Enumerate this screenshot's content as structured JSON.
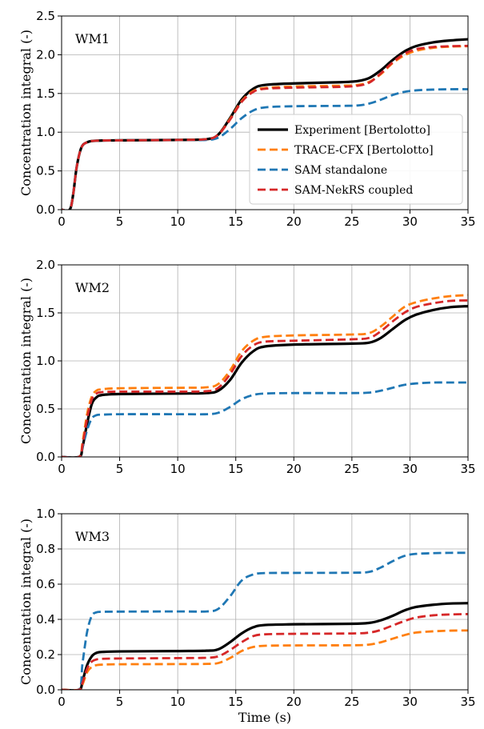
{
  "chart_data": {
    "type": "line",
    "x_label": "Time (s)",
    "y_label": "Concentration integral (-)",
    "xlim": [
      0,
      35
    ],
    "x_ticks": [
      0,
      5,
      10,
      15,
      20,
      25,
      30,
      35
    ],
    "grid": true,
    "legend_placement": "lower-right (panel WM1)",
    "series_styles": [
      {
        "name": "Experiment [Bertolotto]",
        "color": "#000000",
        "dash": "solid",
        "width": 3.2
      },
      {
        "name": "TRACE-CFX [Bertolotto]",
        "color": "#ff7f0e",
        "dash": "dashed",
        "width": 2.8
      },
      {
        "name": "SAM standalone",
        "color": "#1f77b4",
        "dash": "dashed",
        "width": 2.8
      },
      {
        "name": "SAM-NekRS coupled",
        "color": "#d62728",
        "dash": "dashed",
        "width": 2.8
      }
    ],
    "panels": [
      {
        "tag": "WM1",
        "ylim": [
          0,
          2.5
        ],
        "y_ticks": [
          "0.0",
          "0.5",
          "1.0",
          "1.5",
          "2.0",
          "2.5"
        ],
        "show_legend": true,
        "series": [
          {
            "name": "Experiment [Bertolotto]",
            "x": [
              0,
              0.7,
              1,
              1.3,
              1.7,
              2.2,
              3,
              5,
              10,
              12.5,
              13.5,
              14.5,
              15.5,
              16.5,
              17.5,
              20,
              24,
              25.5,
              26.5,
              27.5,
              28.5,
              29.5,
              30.5,
              32,
              33.5,
              35
            ],
            "y": [
              0,
              0,
              0.2,
              0.55,
              0.8,
              0.87,
              0.89,
              0.895,
              0.9,
              0.91,
              0.97,
              1.18,
              1.42,
              1.56,
              1.61,
              1.63,
              1.645,
              1.66,
              1.7,
              1.8,
              1.93,
              2.04,
              2.11,
              2.16,
              2.185,
              2.2
            ]
          },
          {
            "name": "TRACE-CFX [Bertolotto]",
            "x": [
              0,
              0.7,
              1,
              1.3,
              1.7,
              2.2,
              3,
              5,
              10,
              12.5,
              13.5,
              14.5,
              15.5,
              16.5,
              17.5,
              20,
              24,
              25.5,
              26.5,
              27.5,
              28.5,
              29.5,
              30.5,
              32,
              33.5,
              35
            ],
            "y": [
              0,
              0,
              0.2,
              0.55,
              0.8,
              0.87,
              0.89,
              0.895,
              0.9,
              0.91,
              0.97,
              1.17,
              1.4,
              1.53,
              1.57,
              1.59,
              1.6,
              1.61,
              1.65,
              1.75,
              1.89,
              1.99,
              2.05,
              2.09,
              2.105,
              2.11
            ]
          },
          {
            "name": "SAM standalone",
            "x": [
              0,
              0.7,
              1,
              1.3,
              1.7,
              2.2,
              3,
              5,
              10,
              12.5,
              13.5,
              14.5,
              15.5,
              16.5,
              17.5,
              20,
              24,
              25.5,
              26.5,
              27.5,
              28.5,
              29.5,
              30.5,
              32,
              33.5,
              35
            ],
            "y": [
              0,
              0,
              0.2,
              0.55,
              0.8,
              0.87,
              0.89,
              0.895,
              0.9,
              0.9,
              0.93,
              1.04,
              1.18,
              1.28,
              1.32,
              1.335,
              1.34,
              1.345,
              1.37,
              1.42,
              1.48,
              1.52,
              1.54,
              1.55,
              1.555,
              1.555
            ]
          },
          {
            "name": "SAM-NekRS coupled",
            "x": [
              0,
              0.7,
              1,
              1.3,
              1.7,
              2.2,
              3,
              5,
              10,
              12.5,
              13.5,
              14.5,
              15.5,
              16.5,
              17.5,
              20,
              24,
              25.5,
              26.5,
              27.5,
              28.5,
              29.5,
              30.5,
              32,
              33.5,
              35
            ],
            "y": [
              0,
              0,
              0.2,
              0.55,
              0.8,
              0.87,
              0.89,
              0.895,
              0.9,
              0.91,
              0.97,
              1.16,
              1.39,
              1.52,
              1.56,
              1.575,
              1.585,
              1.6,
              1.64,
              1.76,
              1.9,
              2.01,
              2.07,
              2.1,
              2.11,
              2.115
            ]
          }
        ]
      },
      {
        "tag": "WM2",
        "ylim": [
          0,
          2.0
        ],
        "y_ticks": [
          "0.0",
          "0.5",
          "1.0",
          "1.5",
          "2.0"
        ],
        "show_legend": false,
        "series": [
          {
            "name": "Experiment [Bertolotto]",
            "x": [
              0,
              1.5,
              1.8,
              2.2,
              2.6,
              3,
              3.5,
              5,
              10,
              12.5,
              13.5,
              14.5,
              15.5,
              16.5,
              17.5,
              20,
              25,
              26.5,
              27.5,
              28.5,
              29.5,
              30.5,
              32,
              33.5,
              35
            ],
            "y": [
              0,
              0,
              0.1,
              0.35,
              0.55,
              0.62,
              0.645,
              0.655,
              0.66,
              0.665,
              0.69,
              0.8,
              0.98,
              1.1,
              1.15,
              1.17,
              1.18,
              1.19,
              1.24,
              1.33,
              1.42,
              1.48,
              1.53,
              1.56,
              1.57
            ]
          },
          {
            "name": "TRACE-CFX [Bertolotto]",
            "x": [
              0,
              1.5,
              1.8,
              2.2,
              2.6,
              3,
              3.5,
              5,
              10,
              12.5,
              13.5,
              14.5,
              15.5,
              16.5,
              17.5,
              20,
              25,
              26.5,
              27.5,
              28.5,
              29.5,
              30.5,
              32,
              33.5,
              35
            ],
            "y": [
              0,
              0,
              0.15,
              0.45,
              0.63,
              0.69,
              0.705,
              0.715,
              0.72,
              0.725,
              0.76,
              0.9,
              1.1,
              1.21,
              1.25,
              1.265,
              1.275,
              1.29,
              1.36,
              1.46,
              1.56,
              1.61,
              1.65,
              1.675,
              1.685
            ]
          },
          {
            "name": "SAM standalone",
            "x": [
              0,
              1.5,
              1.8,
              2.2,
              2.6,
              3,
              3.5,
              5,
              10,
              12.5,
              13.5,
              14.5,
              15.5,
              16.5,
              17.5,
              20,
              25,
              26.5,
              27.5,
              28.5,
              29.5,
              30.5,
              32,
              33.5,
              35
            ],
            "y": [
              0,
              0,
              0.1,
              0.28,
              0.4,
              0.435,
              0.44,
              0.445,
              0.445,
              0.445,
              0.46,
              0.52,
              0.6,
              0.645,
              0.66,
              0.665,
              0.665,
              0.67,
              0.69,
              0.72,
              0.75,
              0.765,
              0.775,
              0.775,
              0.775
            ]
          },
          {
            "name": "SAM-NekRS coupled",
            "x": [
              0,
              1.5,
              1.8,
              2.2,
              2.6,
              3,
              3.5,
              5,
              10,
              12.5,
              13.5,
              14.5,
              15.5,
              16.5,
              17.5,
              20,
              25,
              26.5,
              27.5,
              28.5,
              29.5,
              30.5,
              32,
              33.5,
              35
            ],
            "y": [
              0,
              0,
              0.12,
              0.4,
              0.6,
              0.66,
              0.675,
              0.68,
              0.68,
              0.685,
              0.72,
              0.86,
              1.05,
              1.16,
              1.2,
              1.21,
              1.225,
              1.24,
              1.31,
              1.41,
              1.5,
              1.56,
              1.6,
              1.625,
              1.63
            ]
          }
        ]
      },
      {
        "tag": "WM3",
        "ylim": [
          0,
          1.0
        ],
        "y_ticks": [
          "0.0",
          "0.2",
          "0.4",
          "0.6",
          "0.8",
          "1.0"
        ],
        "show_legend": false,
        "series": [
          {
            "name": "Experiment [Bertolotto]",
            "x": [
              0,
              1.5,
              1.8,
              2.2,
              2.6,
              3,
              3.5,
              5,
              10,
              12.5,
              13.5,
              14.5,
              15.5,
              16.5,
              17.5,
              20,
              25,
              26.5,
              27.5,
              28.5,
              29.5,
              30.5,
              32,
              33.5,
              35
            ],
            "y": [
              0,
              0,
              0.05,
              0.14,
              0.19,
              0.21,
              0.215,
              0.218,
              0.22,
              0.222,
              0.23,
              0.27,
              0.32,
              0.355,
              0.368,
              0.372,
              0.375,
              0.38,
              0.395,
              0.42,
              0.45,
              0.47,
              0.483,
              0.49,
              0.492
            ]
          },
          {
            "name": "TRACE-CFX [Bertolotto]",
            "x": [
              0,
              1.5,
              1.8,
              2.2,
              2.6,
              3,
              3.5,
              5,
              10,
              12.5,
              13.5,
              14.5,
              15.5,
              16.5,
              17.5,
              20,
              25,
              26.5,
              27.5,
              28.5,
              29.5,
              30.5,
              32,
              33.5,
              35
            ],
            "y": [
              0,
              0,
              0.03,
              0.1,
              0.13,
              0.14,
              0.143,
              0.145,
              0.146,
              0.147,
              0.152,
              0.18,
              0.22,
              0.243,
              0.25,
              0.252,
              0.253,
              0.257,
              0.27,
              0.29,
              0.31,
              0.325,
              0.332,
              0.336,
              0.337
            ]
          },
          {
            "name": "SAM standalone",
            "x": [
              0,
              1.5,
              1.8,
              2.2,
              2.6,
              3,
              3.5,
              5,
              10,
              12.5,
              13.5,
              14.5,
              15.5,
              16.5,
              17.5,
              20,
              25,
              26.5,
              27.5,
              28.5,
              29.5,
              30.5,
              32,
              33.5,
              35
            ],
            "y": [
              0,
              0,
              0.15,
              0.33,
              0.42,
              0.44,
              0.443,
              0.444,
              0.445,
              0.445,
              0.46,
              0.53,
              0.62,
              0.655,
              0.663,
              0.664,
              0.665,
              0.67,
              0.695,
              0.73,
              0.76,
              0.772,
              0.776,
              0.778,
              0.778
            ]
          },
          {
            "name": "SAM-NekRS coupled",
            "x": [
              0,
              1.5,
              1.8,
              2.2,
              2.6,
              3,
              3.5,
              5,
              10,
              12.5,
              13.5,
              14.5,
              15.5,
              16.5,
              17.5,
              20,
              25,
              26.5,
              27.5,
              28.5,
              29.5,
              30.5,
              32,
              33.5,
              35
            ],
            "y": [
              0,
              0,
              0.04,
              0.12,
              0.16,
              0.172,
              0.176,
              0.178,
              0.18,
              0.182,
              0.19,
              0.225,
              0.27,
              0.305,
              0.315,
              0.318,
              0.32,
              0.325,
              0.34,
              0.365,
              0.39,
              0.41,
              0.423,
              0.428,
              0.43
            ]
          }
        ]
      }
    ]
  }
}
